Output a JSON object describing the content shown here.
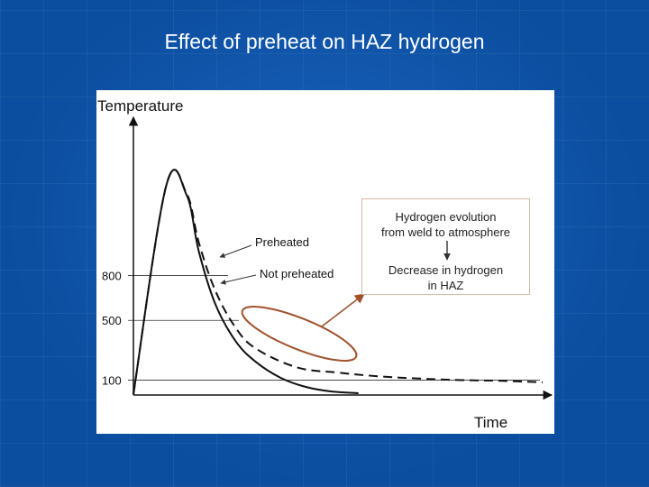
{
  "slide": {
    "title": "Effect of preheat on HAZ hydrogen"
  },
  "chart_data": {
    "type": "line",
    "ylabel": "Temperature",
    "xlabel": "Time",
    "y_ticks": [
      "800",
      "500",
      "100"
    ],
    "y_tick_values": [
      800,
      500,
      100
    ],
    "ylim": [
      0,
      1800
    ],
    "x_units": "relative time (unlabeled axis)",
    "xlim": [
      0,
      100
    ],
    "series": [
      {
        "name": "Preheated",
        "style": "dashed",
        "points": [
          [
            0,
            5
          ],
          [
            8,
            1400
          ],
          [
            13,
            1350
          ],
          [
            16,
            1020
          ],
          [
            20,
            700
          ],
          [
            25,
            450
          ],
          [
            30,
            310
          ],
          [
            40,
            185
          ],
          [
            50,
            150
          ],
          [
            60,
            125
          ],
          [
            70,
            110
          ],
          [
            80,
            100
          ],
          [
            90,
            95
          ],
          [
            100,
            85
          ]
        ]
      },
      {
        "name": "Not preheated",
        "style": "solid",
        "points": [
          [
            0,
            5
          ],
          [
            8,
            1400
          ],
          [
            13,
            1340
          ],
          [
            16,
            960
          ],
          [
            20,
            610
          ],
          [
            25,
            360
          ],
          [
            30,
            220
          ],
          [
            36,
            115
          ],
          [
            42,
            55
          ],
          [
            48,
            25
          ],
          [
            55,
            12
          ]
        ]
      }
    ],
    "annotation": {
      "lines": [
        "Hydrogen evolution",
        "from weld to atmosphere",
        "Decrease in hydrogen",
        "in HAZ"
      ]
    },
    "colors": {
      "ellipse": "#a0522d",
      "arrow": "#a0522d",
      "background": "#0b4d9e"
    }
  }
}
